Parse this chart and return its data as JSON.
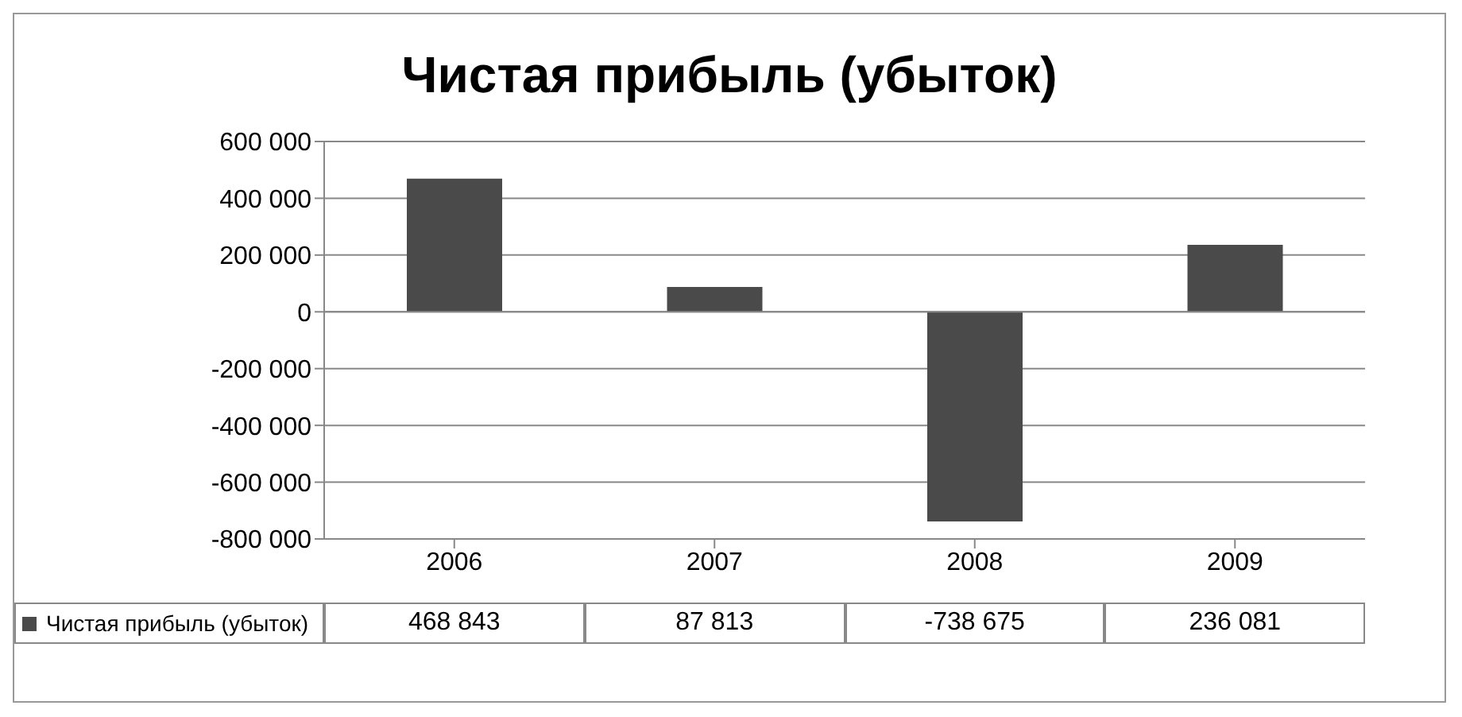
{
  "chart_data": {
    "type": "bar",
    "title": "Чистая прибыль (убыток)",
    "categories": [
      "2006",
      "2007",
      "2008",
      "2009"
    ],
    "series": [
      {
        "name": "Чистая прибыль (убыток)",
        "color": "#4a4a4a",
        "values": [
          468843,
          87813,
          -738675,
          236081
        ]
      }
    ],
    "ylim": [
      -800000,
      600000
    ],
    "yticks": [
      {
        "value": -800000,
        "label": "-800 000"
      },
      {
        "value": -600000,
        "label": "-600 000"
      },
      {
        "value": -400000,
        "label": "-400 000"
      },
      {
        "value": -200000,
        "label": "-200 000"
      },
      {
        "value": 0,
        "label": "0"
      },
      {
        "value": 200000,
        "label": "200 000"
      },
      {
        "value": 400000,
        "label": "400 000"
      },
      {
        "value": 600000,
        "label": "600 000"
      }
    ],
    "grid": "y",
    "legend": "bottom",
    "data_labels": true
  }
}
